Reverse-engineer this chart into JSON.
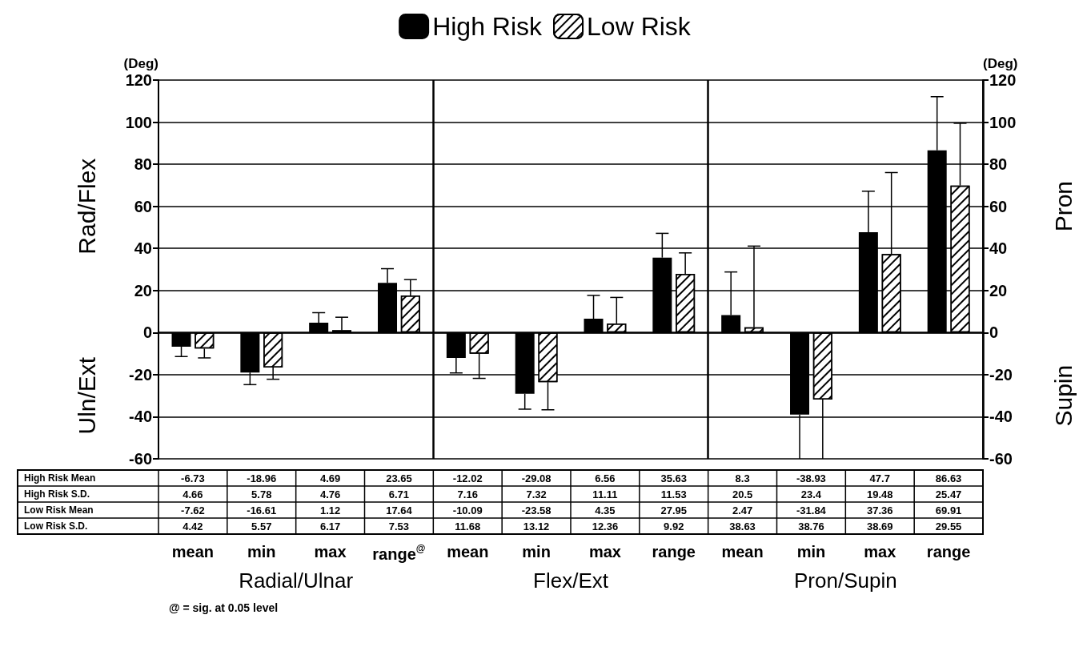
{
  "chart_data": {
    "type": "bar",
    "categories": [
      "mean",
      "min",
      "max",
      "range$^{@}$",
      "mean",
      "min",
      "max",
      "range",
      "mean",
      "min",
      "max",
      "range"
    ],
    "series": [
      {
        "name": "High Risk",
        "color": "#000000",
        "values": [
          -6.73,
          -18.96,
          4.69,
          23.65,
          -12.02,
          -29.08,
          6.56,
          35.63,
          8.3,
          -38.93,
          47.7,
          86.63
        ],
        "errors": [
          [
            -11.39,
            -6.73
          ],
          [
            -24.74,
            -18.96
          ],
          [
            4.69,
            9.45
          ],
          [
            23.65,
            30.36
          ],
          [
            -19.18,
            -12.02
          ],
          [
            -36.4,
            -29.08
          ],
          [
            6.56,
            17.67
          ],
          [
            35.63,
            47.16
          ],
          [
            8.3,
            28.8
          ],
          [
            -60,
            -38.93
          ],
          [
            47.7,
            67.18
          ],
          [
            86.63,
            112.1
          ]
        ]
      },
      {
        "name": "Low Risk",
        "color": "#ffffff",
        "values": [
          -7.62,
          -16.61,
          1.12,
          17.64,
          -10.09,
          -23.58,
          4.35,
          27.95,
          2.47,
          -31.84,
          37.36,
          69.91
        ],
        "errors": [
          [
            -12.04,
            -7.62
          ],
          [
            -22.18,
            -16.61
          ],
          [
            1.12,
            7.29
          ],
          [
            17.64,
            25.17
          ],
          [
            -21.77,
            -10.09
          ],
          [
            -36.7,
            -23.58
          ],
          [
            4.35,
            16.71
          ],
          [
            27.95,
            37.87
          ],
          [
            2.47,
            41.1
          ],
          [
            -60,
            -31.84
          ],
          [
            37.36,
            76.05
          ],
          [
            69.91,
            99.46
          ]
        ]
      }
    ],
    "ylabel": "(Deg)",
    "y2label": "(Deg)",
    "ylim": [
      -60,
      120
    ],
    "yticks": [
      -60,
      -40,
      -20,
      0,
      20,
      40,
      60,
      80,
      100,
      120
    ],
    "y2lim": [
      -60,
      120
    ],
    "y2ticks": [
      -60,
      -40,
      -20,
      0,
      20,
      40,
      60,
      80,
      100,
      120
    ],
    "annotations": [
      "Rad/Flex",
      "Uln/Ext",
      "Pron",
      "Supin",
      "Radial/Ulnar",
      "Flex/Ext",
      "Pron/Supin",
      "High Risk Mean",
      "High Risk S.D.",
      "Low Risk Mean",
      "Low Risk S.D.",
      "@ = sig. at 0.05 level",
      "4.66",
      "5.78",
      "4.76",
      "6.71",
      "7.16",
      "7.32",
      "11.11",
      "11.53",
      "20.5",
      "23.4",
      "19.48",
      "25.47",
      "4.42",
      "5.57",
      "6.17",
      "7.53",
      "11.68",
      "13.12",
      "12.36",
      "9.92",
      "38.63",
      "38.76",
      "38.69",
      "29.55"
    ],
    "data_labels": true,
    "grid": "y",
    "legend": "top"
  }
}
